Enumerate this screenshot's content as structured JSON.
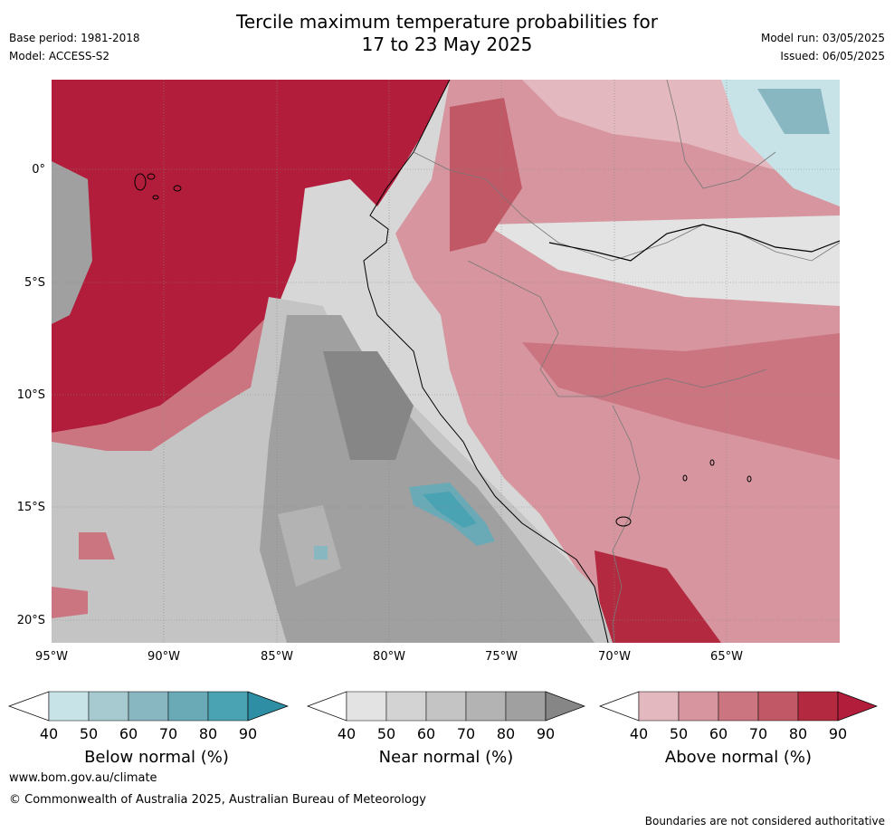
{
  "header": {
    "title_line1": "Tercile maximum temperature probabilities for",
    "title_line2": "17 to 23 May 2025",
    "base_period": "Base period: 1981-2018",
    "model": "Model: ACCESS-S2",
    "model_run": "Model run: 03/05/2025",
    "issued": "Issued: 06/05/2025"
  },
  "axes": {
    "lat_labels": [
      "0°",
      "5°S",
      "10°S",
      "15°S",
      "20°S"
    ],
    "lon_labels": [
      "95°W",
      "90°W",
      "85°W",
      "80°W",
      "75°W",
      "70°W",
      "65°W"
    ]
  },
  "colorbars": [
    {
      "title": "Below normal (%)",
      "ticks": [
        "40",
        "50",
        "60",
        "70",
        "80",
        "90"
      ],
      "colors": [
        "#c8e3e8",
        "#a6cad0",
        "#88b7c1",
        "#6aaab7",
        "#4aa3b2",
        "#2e8ea3"
      ]
    },
    {
      "title": "Near normal (%)",
      "ticks": [
        "40",
        "50",
        "60",
        "70",
        "80",
        "90"
      ],
      "colors": [
        "#e3e3e3",
        "#d3d3d3",
        "#c4c4c4",
        "#b3b3b3",
        "#a0a0a0",
        "#868686"
      ]
    },
    {
      "title": "Above normal (%)",
      "ticks": [
        "40",
        "50",
        "60",
        "70",
        "80",
        "90"
      ],
      "colors": [
        "#e3b9bf",
        "#d7969f",
        "#cb7581",
        "#c15866",
        "#b32a40",
        "#b21d3b"
      ]
    }
  ],
  "footer": {
    "url": "www.bom.gov.au/climate",
    "copyright": "© Commonwealth of Australia 2025, Australian Bureau of Meteorology",
    "note": "Boundaries are not considered authoritative"
  }
}
